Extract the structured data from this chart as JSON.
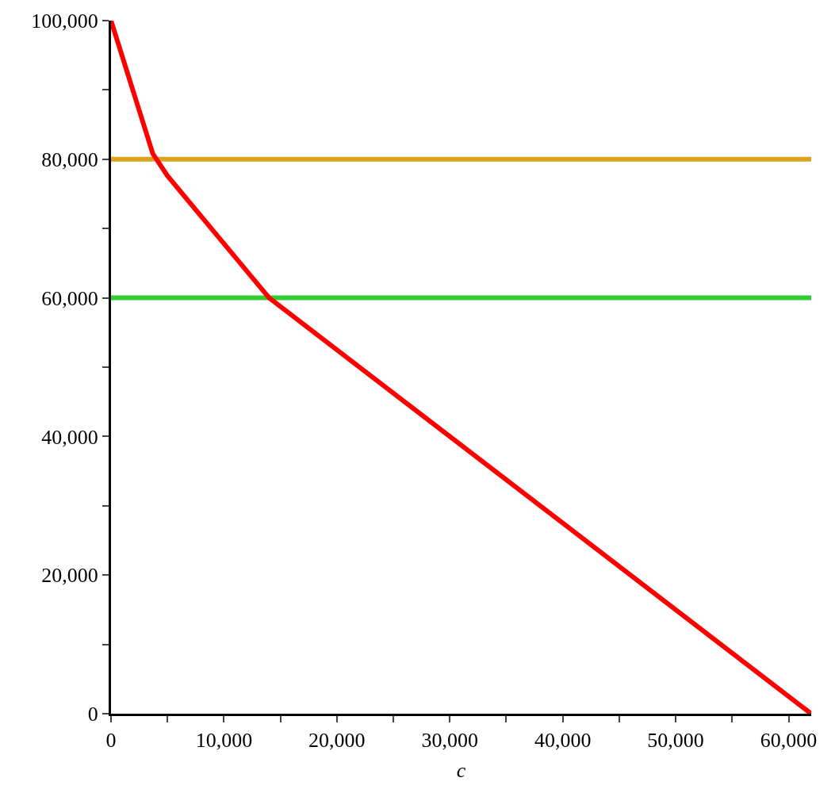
{
  "chart_data": {
    "type": "line",
    "xlabel": "c",
    "x": [
      0,
      3700,
      5000,
      14000,
      62000
    ],
    "series": [
      {
        "color": "#ff0000",
        "values": [
          100000,
          80800,
          77600,
          60000,
          0
        ]
      }
    ],
    "ref_lines": [
      {
        "axis": "y",
        "value": 80000,
        "label": null,
        "color": "#daa520"
      },
      {
        "axis": "y",
        "value": 60000,
        "label": null,
        "color": "#32cd32"
      }
    ],
    "xlim": [
      0,
      62000
    ],
    "ylim": [
      0,
      100000
    ],
    "xticks": [
      0,
      {
        "value": 5000,
        "label": null
      },
      {
        "value": 10000,
        "label": "10,000"
      },
      {
        "value": 15000,
        "label": null
      },
      {
        "value": 20000,
        "label": "20,000"
      },
      {
        "value": 25000,
        "label": null
      },
      {
        "value": 30000,
        "label": "30,000"
      },
      {
        "value": 35000,
        "label": null
      },
      {
        "value": 40000,
        "label": "40,000"
      },
      {
        "value": 45000,
        "label": null
      },
      {
        "value": 50000,
        "label": "50,000"
      },
      {
        "value": 55000,
        "label": null
      },
      {
        "value": 60000,
        "label": "60,000"
      }
    ],
    "yticks": [
      0,
      {
        "value": 10000,
        "label": null
      },
      {
        "value": 20000,
        "label": "20,000"
      },
      {
        "value": 30000,
        "label": null
      },
      {
        "value": 40000,
        "label": "40,000"
      },
      {
        "value": 50000,
        "label": null
      },
      {
        "value": 60000,
        "label": "60,000"
      },
      {
        "value": 70000,
        "label": null
      },
      {
        "value": 80000,
        "label": "80,000"
      },
      {
        "value": 90000,
        "label": null
      },
      {
        "value": 100000,
        "label": "100,000"
      }
    ],
    "marker": "none"
  }
}
